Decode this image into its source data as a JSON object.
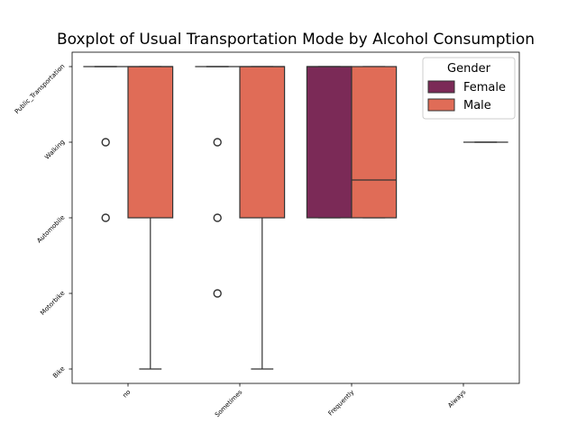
{
  "chart_data": {
    "type": "boxplot",
    "title": "Boxplot of Usual Transportation Mode by Alcohol Consumption",
    "xlabel": "",
    "ylabel": "",
    "categories": [
      "no",
      "Sometimes",
      "Frequently",
      "Always"
    ],
    "y_categories": [
      "Public_Transportation",
      "Walking",
      "Automobile",
      "Motorbike",
      "Bike"
    ],
    "legend": {
      "title": "Gender",
      "placement": "top-right"
    },
    "series": [
      {
        "name": "Female",
        "color": "#7b2a57",
        "boxes": [
          {
            "category": "no",
            "q1": 0,
            "median": 0,
            "q3": 0,
            "whisker_low": 0,
            "whisker_high": 0,
            "outliers": [
              1,
              2
            ]
          },
          {
            "category": "Sometimes",
            "q1": 0,
            "median": 0,
            "q3": 0,
            "whisker_low": 0,
            "whisker_high": 0,
            "outliers": [
              1,
              2,
              3
            ]
          },
          {
            "category": "Frequently",
            "q1": 0,
            "median": 0,
            "q3": 2,
            "whisker_low": 0,
            "whisker_high": 2,
            "outliers": []
          }
        ]
      },
      {
        "name": "Male",
        "color": "#e06c57",
        "boxes": [
          {
            "category": "no",
            "q1": 0,
            "median": 0,
            "q3": 2,
            "whisker_low": 0,
            "whisker_high": 4,
            "outliers": []
          },
          {
            "category": "Sometimes",
            "q1": 0,
            "median": 0,
            "q3": 2,
            "whisker_low": 0,
            "whisker_high": 4,
            "outliers": []
          },
          {
            "category": "Frequently",
            "q1": 0,
            "median": 1.5,
            "q3": 2,
            "whisker_low": 0,
            "whisker_high": 2,
            "outliers": []
          },
          {
            "category": "Always",
            "q1": 1,
            "median": 1,
            "q3": 1,
            "whisker_low": 1,
            "whisker_high": 1,
            "outliers": []
          }
        ]
      }
    ]
  }
}
